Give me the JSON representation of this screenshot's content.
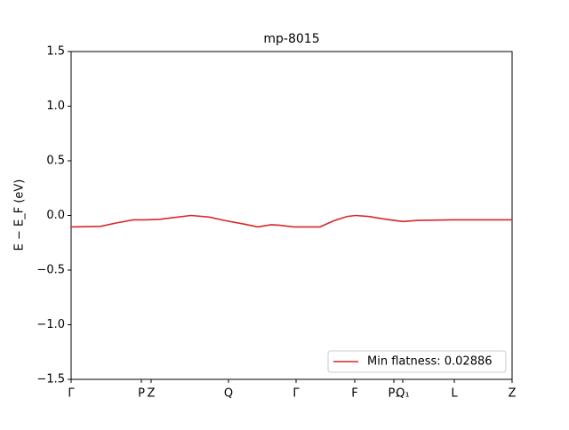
{
  "chart_data": {
    "type": "line",
    "title": "mp-8015",
    "ylabel": "E − E_F (eV)",
    "xlim": [
      0,
      4.96
    ],
    "ylim": [
      -1.5,
      1.5
    ],
    "yticks": [
      {
        "value": -1.5,
        "label": "−1.5"
      },
      {
        "value": -1.0,
        "label": "−1.0"
      },
      {
        "value": -0.5,
        "label": "−0.5"
      },
      {
        "value": 0,
        "label": "0.0"
      },
      0.5,
      {
        "value": 1.0,
        "label": "1.0"
      },
      1.5
    ],
    "xticks": [
      {
        "value": 0,
        "label": "Γ"
      },
      {
        "value": 0.79,
        "label": "P"
      },
      {
        "value": 0.9,
        "label": "Z"
      },
      {
        "value": 1.77,
        "label": "Q"
      },
      {
        "value": 2.53,
        "label": "Γ"
      },
      {
        "value": 3.19,
        "label": "F"
      },
      {
        "value": 3.63,
        "label": "P₁"
      },
      {
        "value": 3.73,
        "label": "Q₁"
      },
      {
        "value": 4.31,
        "label": "L"
      },
      {
        "value": 4.96,
        "label": "Z"
      }
    ],
    "legend": "lower right",
    "series": [
      {
        "name": "Min flatness: 0.02886",
        "color": "#d62728",
        "x": [
          0,
          0.33,
          0.5,
          0.7,
          0.85,
          1.0,
          1.15,
          1.35,
          1.55,
          1.75,
          1.95,
          2.1,
          2.25,
          2.35,
          2.5,
          2.8,
          2.95,
          3.1,
          3.2,
          3.35,
          3.5,
          3.63,
          3.73,
          3.9,
          4.31,
          4.6,
          4.96
        ],
        "values": [
          -0.105,
          -0.1,
          -0.07,
          -0.04,
          -0.04,
          -0.035,
          -0.02,
          0.0,
          -0.015,
          -0.05,
          -0.08,
          -0.105,
          -0.085,
          -0.09,
          -0.105,
          -0.105,
          -0.05,
          -0.01,
          0.0,
          -0.01,
          -0.03,
          -0.045,
          -0.055,
          -0.045,
          -0.04,
          -0.04,
          -0.04
        ]
      }
    ]
  }
}
